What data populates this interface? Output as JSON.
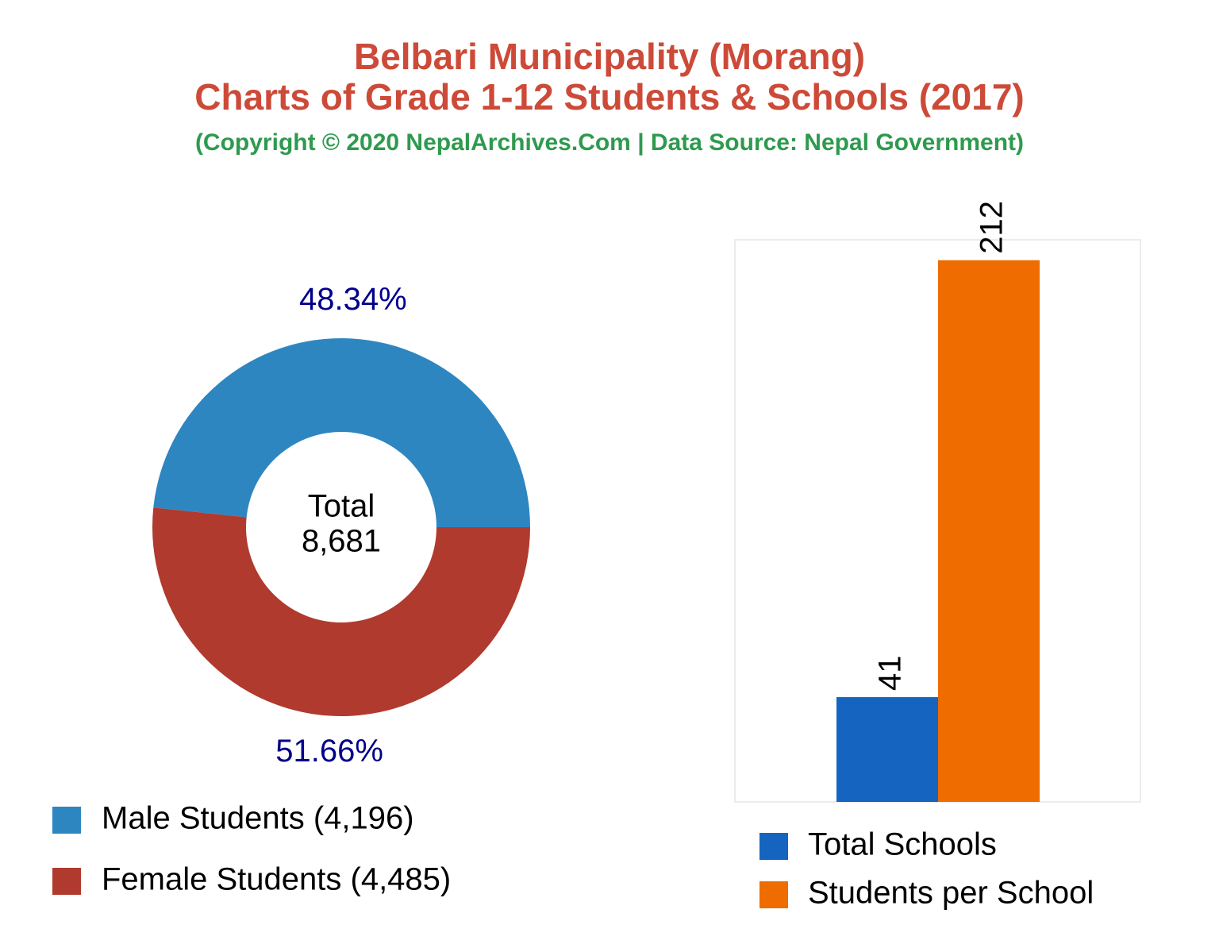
{
  "title": "Belbari Municipality (Morang)",
  "subtitle": "Charts of Grade 1-12 Students & Schools (2017)",
  "source": "(Copyright © 2020 NepalArchives.Com | Data Source: Nepal Government)",
  "chart_data": [
    {
      "type": "donut",
      "categories": [
        "Male Students (4,196)",
        "Female Students (4,485)"
      ],
      "values": [
        48.34,
        51.66
      ],
      "value_labels": [
        "48.34%",
        "51.66%"
      ],
      "colors": [
        "#2e86c1",
        "#b03a2e"
      ],
      "center_text": [
        "Total",
        "8,681"
      ]
    },
    {
      "type": "bar",
      "series": [
        {
          "name": "Total Schools",
          "color": "#1565c0",
          "values": [
            41
          ]
        },
        {
          "name": "Students per School",
          "color": "#ef6c00",
          "values": [
            212
          ]
        }
      ],
      "ylim": [
        0,
        220
      ]
    }
  ]
}
